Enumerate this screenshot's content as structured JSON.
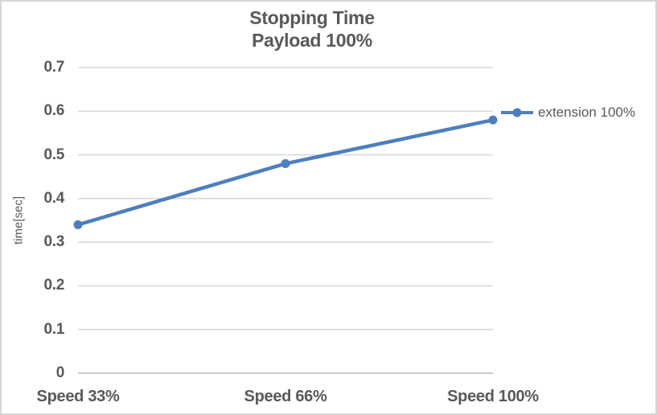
{
  "window": {
    "background": "#FFFFFF",
    "border_color": "#D6D6D6"
  },
  "title": {
    "line1": "Stopping Time",
    "line2": "Payload 100%"
  },
  "y_axis": {
    "title": "time[sec]"
  },
  "legend": {
    "label": "extension 100%"
  },
  "chart_data": {
    "type": "line",
    "title": "Stopping Time Payload 100%",
    "categories": [
      "Speed 33%",
      "Speed 66%",
      "Speed 100%"
    ],
    "series": [
      {
        "name": "extension 100%",
        "values": [
          0.34,
          0.48,
          0.58
        ]
      }
    ],
    "xlabel": "",
    "ylabel": "time[sec]",
    "ylim": [
      0,
      0.7
    ],
    "ytick_step": 0.1,
    "ytick_labels": [
      "0",
      "0.1",
      "0.2",
      "0.3",
      "0.4",
      "0.5",
      "0.6",
      "0.7"
    ],
    "grid": true,
    "legend_position": "right",
    "colors": {
      "line": "#4E7FBC",
      "marker": "#4E7FBC",
      "text": "#595959",
      "gridline": "#D9D9D9",
      "axis_line": "#C9C9C9"
    }
  }
}
